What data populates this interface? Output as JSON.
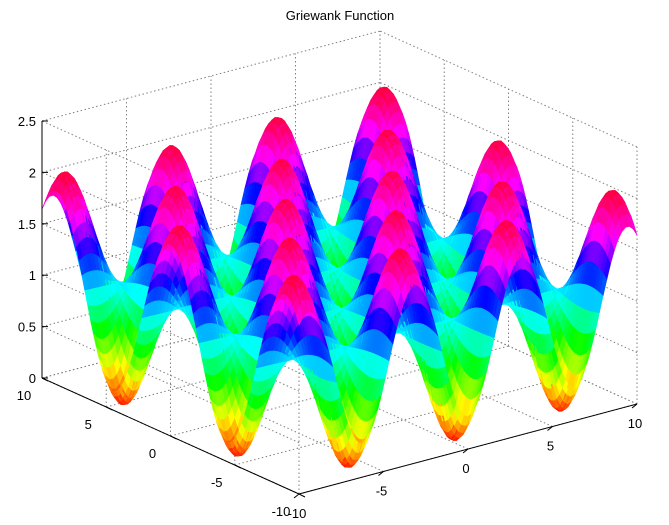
{
  "chart_data": {
    "type": "surface",
    "title": "Griewank Function",
    "function": "z = 1 + (x^2 + y^2)/4000 - cos(x)*cos(y/sqrt(2))",
    "x": {
      "range": [
        -10,
        10
      ],
      "ticks": [
        -10,
        -5,
        0,
        5,
        10
      ],
      "tick_labels": [
        "-10",
        "-5",
        "0",
        "5",
        "10"
      ]
    },
    "y": {
      "range": [
        -10,
        10
      ],
      "ticks": [
        -10,
        -5,
        0,
        5,
        10
      ],
      "tick_labels": [
        "-10",
        "-5",
        "0",
        "5",
        "10"
      ]
    },
    "z": {
      "range": [
        0,
        2.5
      ],
      "ticks": [
        0,
        0.5,
        1,
        1.5,
        2,
        2.5
      ],
      "tick_labels": [
        "0",
        "0.5",
        "1",
        "1.5",
        "2",
        "2.5"
      ]
    },
    "grid": true,
    "box": true,
    "colormap": "hsv",
    "colormap_stops": [
      {
        "v": 0.0,
        "color": "#ff0000"
      },
      {
        "v": 0.17,
        "color": "#ffff00"
      },
      {
        "v": 0.33,
        "color": "#00ff00"
      },
      {
        "v": 0.5,
        "color": "#00ffff"
      },
      {
        "v": 0.67,
        "color": "#0000ff"
      },
      {
        "v": 0.83,
        "color": "#ff00ff"
      },
      {
        "v": 1.0,
        "color": "#ff0040"
      }
    ],
    "grid_color": "#808080",
    "axis_color": "#000000"
  }
}
